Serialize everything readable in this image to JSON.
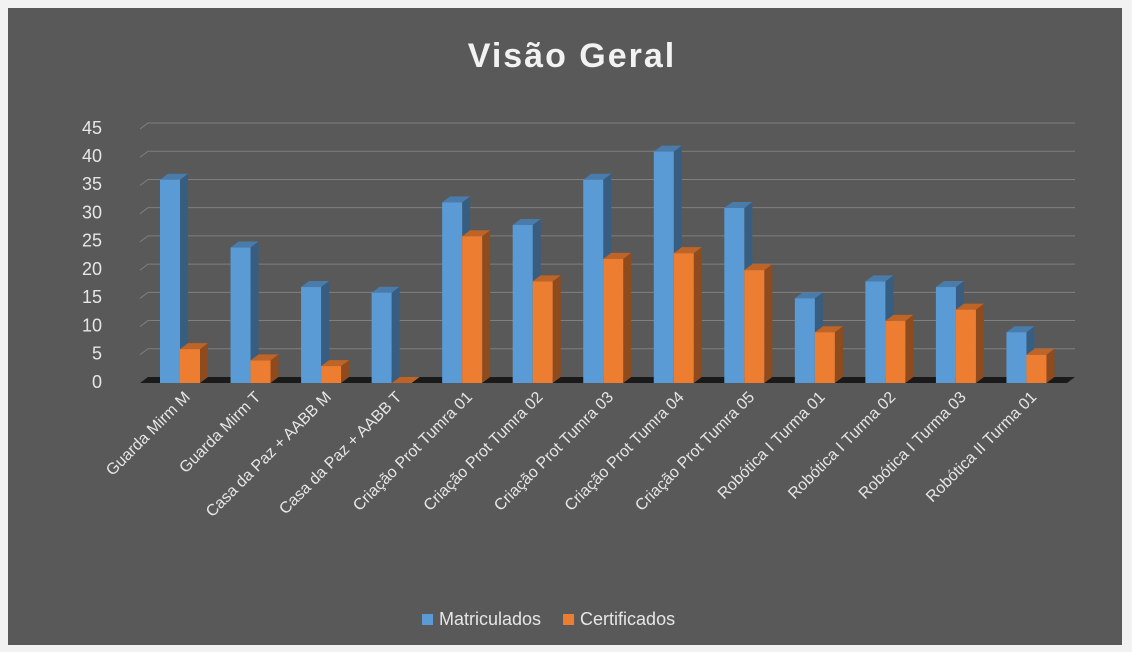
{
  "chart_data": {
    "type": "bar",
    "title": "Visão Geral",
    "categories": [
      "Guarda Mirm M",
      "Guarda Mirm T",
      "Casa da Paz + AABB M",
      "Casa da Paz + AABB T",
      "Criação Prot Tumra 01",
      "Criação Prot Tumra 02",
      "Criação Prot Tumra 03",
      "Criação Prot Tumra 04",
      "Criação Prot Tumra 05",
      "Robótica I Turma 01",
      "Robótica I Turma 02",
      "Robótica I Turma 03",
      "Robótica II Turma 01"
    ],
    "series": [
      {
        "name": "Matriculados",
        "color": "#5b9bd5",
        "values": [
          36,
          24,
          17,
          16,
          32,
          28,
          36,
          41,
          31,
          15,
          18,
          17,
          9
        ]
      },
      {
        "name": "Certificados",
        "color": "#ed7d31",
        "values": [
          6,
          4,
          3,
          0,
          26,
          18,
          22,
          23,
          20,
          9,
          11,
          13,
          5
        ]
      }
    ],
    "ylim": [
      0,
      45
    ],
    "yticks": [
      0,
      5,
      10,
      15,
      20,
      25,
      30,
      35,
      40,
      45
    ],
    "grid": true,
    "legend": "bottom"
  }
}
